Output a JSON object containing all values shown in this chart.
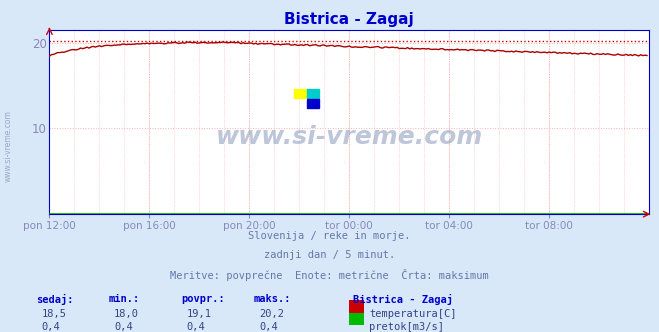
{
  "title": "Bistrica - Zagaj",
  "bg_color": "#d8e8f8",
  "plot_bg_color": "#ffffff",
  "grid_color": "#ffb0b0",
  "grid_style": ":",
  "xlim": [
    0,
    288
  ],
  "ylim": [
    0,
    21.5
  ],
  "yticks": [
    10,
    20
  ],
  "xtick_labels": [
    "pon 12:00",
    "pon 16:00",
    "pon 20:00",
    "tor 00:00",
    "tor 04:00",
    "tor 08:00"
  ],
  "xtick_positions": [
    0,
    48,
    96,
    144,
    192,
    240
  ],
  "tick_color": "#8888bb",
  "title_color": "#0000cc",
  "line_color_temp": "#aa0000",
  "line_color_flow": "#00aa00",
  "max_line_color": "#cc0000",
  "max_line_style": ":",
  "max_val": 20.2,
  "axis_color": "#0000cc",
  "watermark_text": "www.si-vreme.com",
  "watermark_color": "#8899bb",
  "subtitle_lines": [
    "Slovenija / reke in morje.",
    "zadnji dan / 5 minut.",
    "Meritve: povprečne  Enote: metrične  Črta: maksimum"
  ],
  "subtitle_color": "#6677aa",
  "legend_title": "Bistrica - Zagaj",
  "legend_items": [
    {
      "label": "temperatura[C]",
      "color": "#cc0000"
    },
    {
      "label": "pretok[m3/s]",
      "color": "#00bb00"
    }
  ],
  "stats_headers": [
    "sedaj:",
    "min.:",
    "povpr.:",
    "maks.:"
  ],
  "stats_temp": [
    "18,5",
    "18,0",
    "19,1",
    "20,2"
  ],
  "stats_flow": [
    "0,4",
    "0,4",
    "0,4",
    "0,4"
  ],
  "stats_color": "#0000cc",
  "stats_val_color": "#334488",
  "left_watermark": "www.si-vreme.com",
  "logo_colors": [
    "#ffff00",
    "#00cccc",
    "#0000cc"
  ],
  "temp_start": 18.5,
  "temp_peak_idx": 80,
  "temp_peak_val": 20.05,
  "temp_end": 18.5,
  "flow_val": 0.4
}
